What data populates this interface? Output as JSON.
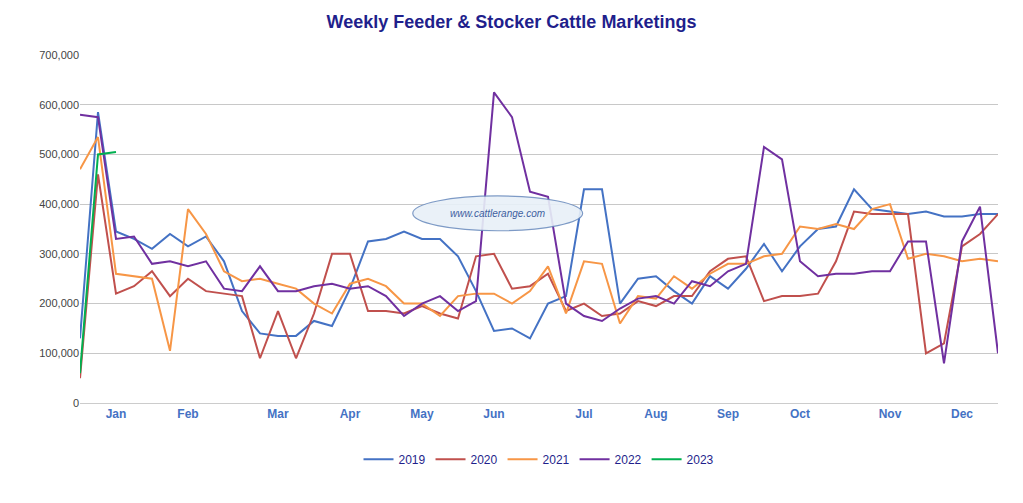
{
  "chart_data": {
    "type": "line",
    "title": "Weekly Feeder & Stocker Cattle Marketings",
    "categories": [
      null,
      null,
      "Jan",
      null,
      null,
      null,
      "Feb",
      null,
      null,
      null,
      null,
      "Mar",
      null,
      null,
      null,
      "Apr",
      null,
      null,
      null,
      "May",
      null,
      null,
      null,
      "Jun",
      null,
      null,
      null,
      null,
      "Jul",
      null,
      null,
      null,
      "Aug",
      null,
      null,
      null,
      "Sep",
      null,
      null,
      null,
      "Oct",
      null,
      null,
      null,
      null,
      "Nov",
      null,
      null,
      null,
      "Dec",
      null,
      null
    ],
    "series": [
      {
        "name": "2019",
        "color": "#4472c4",
        "values": [
          130000,
          585000,
          345000,
          330000,
          310000,
          340000,
          315000,
          335000,
          285000,
          185000,
          140000,
          135000,
          135000,
          165000,
          155000,
          230000,
          325000,
          330000,
          345000,
          330000,
          330000,
          295000,
          225000,
          145000,
          150000,
          130000,
          200000,
          215000,
          430000,
          430000,
          200000,
          250000,
          255000,
          225000,
          200000,
          255000,
          230000,
          270000,
          320000,
          265000,
          315000,
          350000,
          355000,
          430000,
          390000,
          385000,
          380000,
          385000,
          375000,
          375000,
          380000,
          380000
        ]
      },
      {
        "name": "2020",
        "color": "#c0504d",
        "values": [
          50000,
          460000,
          220000,
          235000,
          265000,
          215000,
          250000,
          225000,
          220000,
          215000,
          90000,
          185000,
          90000,
          180000,
          300000,
          300000,
          185000,
          185000,
          180000,
          195000,
          180000,
          170000,
          295000,
          300000,
          230000,
          235000,
          260000,
          185000,
          200000,
          175000,
          180000,
          205000,
          195000,
          215000,
          215000,
          265000,
          290000,
          295000,
          205000,
          215000,
          215000,
          220000,
          285000,
          385000,
          380000,
          380000,
          380000,
          100000,
          120000,
          315000,
          340000,
          380000
        ]
      },
      {
        "name": "2021",
        "color": "#f79646",
        "values": [
          470000,
          535000,
          260000,
          255000,
          250000,
          105000,
          390000,
          340000,
          265000,
          245000,
          250000,
          240000,
          230000,
          200000,
          180000,
          240000,
          250000,
          235000,
          200000,
          200000,
          175000,
          215000,
          220000,
          220000,
          200000,
          225000,
          275000,
          180000,
          285000,
          280000,
          160000,
          215000,
          210000,
          255000,
          230000,
          260000,
          280000,
          280000,
          295000,
          300000,
          355000,
          350000,
          360000,
          350000,
          390000,
          400000,
          290000,
          300000,
          295000,
          285000,
          290000,
          285000
        ]
      },
      {
        "name": "2022",
        "color": "#7030a0",
        "values": [
          580000,
          575000,
          330000,
          335000,
          280000,
          285000,
          275000,
          285000,
          230000,
          225000,
          275000,
          225000,
          225000,
          235000,
          240000,
          230000,
          235000,
          215000,
          175000,
          200000,
          215000,
          185000,
          205000,
          625000,
          575000,
          425000,
          415000,
          200000,
          175000,
          165000,
          190000,
          210000,
          215000,
          200000,
          245000,
          235000,
          265000,
          280000,
          515000,
          490000,
          285000,
          255000,
          260000,
          260000,
          265000,
          265000,
          325000,
          325000,
          80000,
          325000,
          395000,
          100000
        ]
      },
      {
        "name": "2023",
        "color": "#00b050",
        "values": [
          60000,
          500000,
          505000,
          null,
          null,
          null,
          null,
          null,
          null,
          null,
          null,
          null,
          null,
          null,
          null,
          null,
          null,
          null,
          null,
          null,
          null,
          null,
          null,
          null,
          null,
          null,
          null,
          null,
          null,
          null,
          null,
          null,
          null,
          null,
          null,
          null,
          null,
          null,
          null,
          null,
          null,
          null,
          null,
          null,
          null,
          null,
          null,
          null,
          null,
          null,
          null,
          null
        ]
      }
    ],
    "ylim": [
      0,
      700000
    ],
    "yticks": [
      0,
      {
        "value": 100000,
        "label": "100,000"
      },
      {
        "value": 200000,
        "label": "200,000"
      },
      {
        "value": 300000,
        "label": "300,000"
      },
      {
        "value": 400000,
        "label": "400,000"
      },
      {
        "value": 500000,
        "label": "500,000"
      },
      {
        "value": 600000,
        "label": "600,000"
      },
      {
        "value": 700000,
        "label": "700,000"
      }
    ],
    "grid": true,
    "legend": "bottom",
    "annotations": [
      "www.cattlerange.com"
    ]
  }
}
